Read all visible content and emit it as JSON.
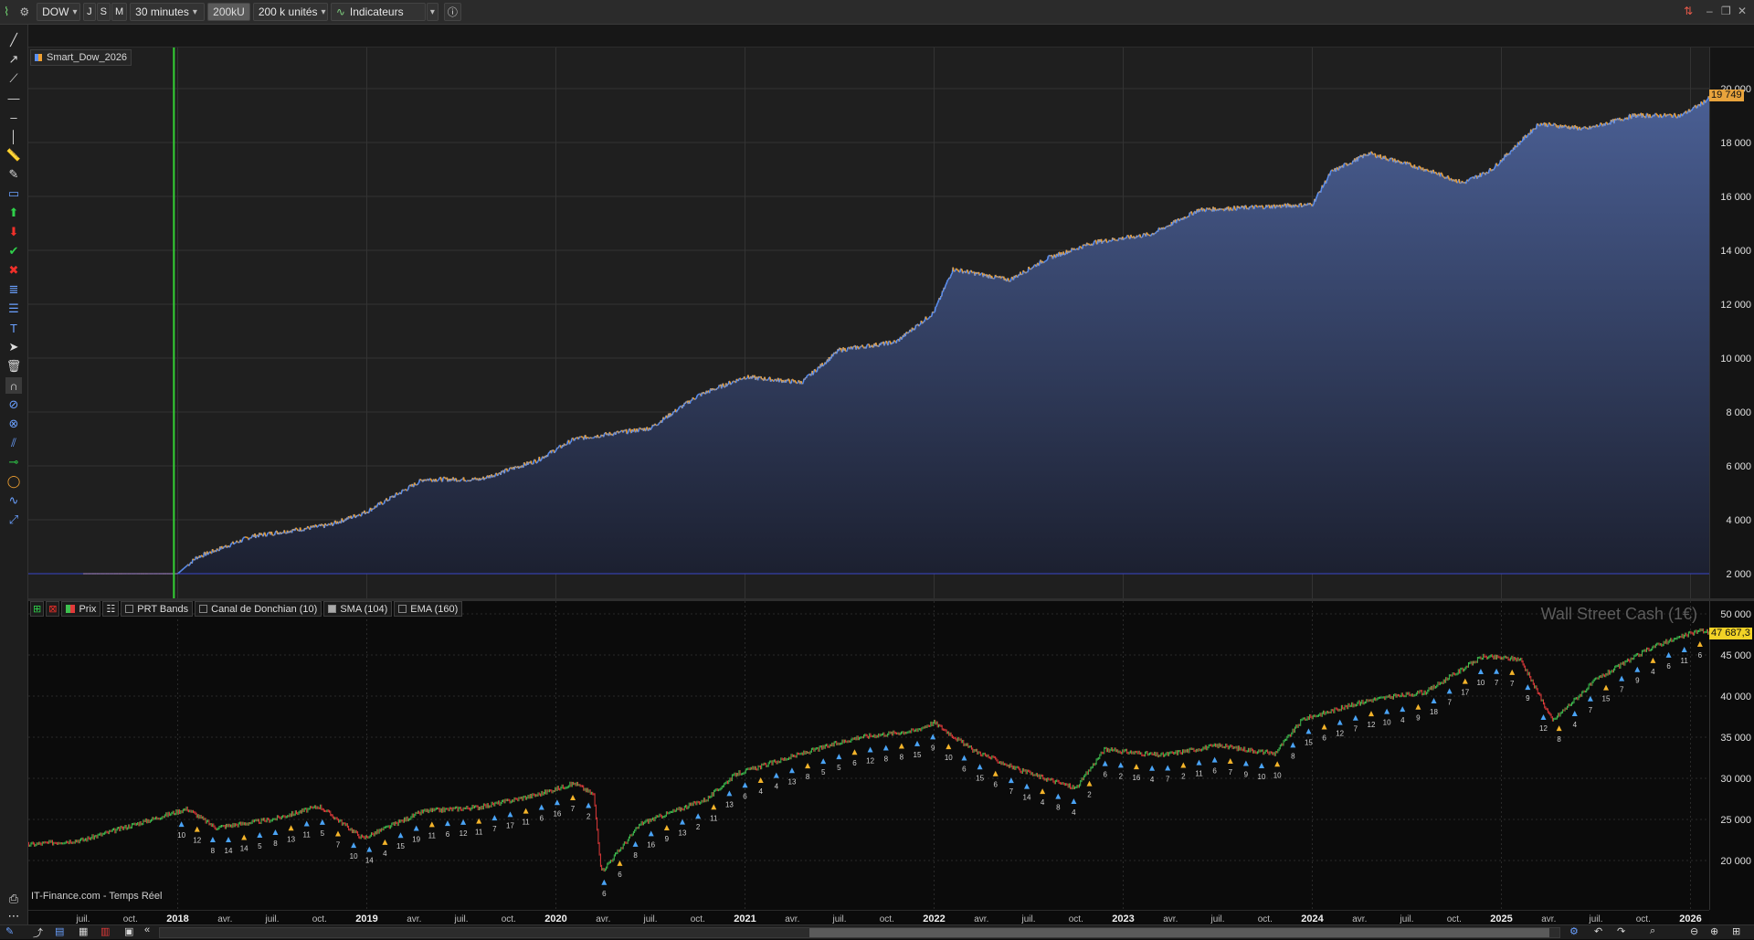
{
  "toolbar": {
    "instrument": "DOW",
    "period_buttons": [
      "J",
      "S",
      "M"
    ],
    "timeframe": "30 minutes",
    "units_short": "200kU",
    "units": "200 k unités",
    "indicators_label": "Indicateurs"
  },
  "equity_pane": {
    "legend_label": "Smart_Dow_2026",
    "y_ticks": [
      "20 000",
      "18 000",
      "16 000",
      "14 000",
      "12 000",
      "10 000",
      "8 000",
      "6 000",
      "4 000",
      "2 000"
    ],
    "last_value": "19 749",
    "colors": {
      "line_up": "#5b8ff0",
      "line_down": "#f0a030",
      "fill": "#3a4c78",
      "last_tag": "#e8a33c",
      "marker": "#34d134"
    }
  },
  "price_pane": {
    "legend": [
      {
        "label": "Prix",
        "checked": true
      },
      {
        "label": "PRT Bands",
        "checked": false
      },
      {
        "label": "Canal de Donchian (10)",
        "checked": false
      },
      {
        "label": "SMA (104)",
        "checked": true
      },
      {
        "label": "EMA (160)",
        "checked": false
      }
    ],
    "watermark": "Wall Street Cash (1€)",
    "y_ticks": [
      "50 000",
      "45 000",
      "40 000",
      "35 000",
      "30 000",
      "25 000",
      "20 000"
    ],
    "last_value": "47 687,3",
    "colors": {
      "last_tag": "#f2d226",
      "bull": "#3fbf4f",
      "bear": "#e23a3a",
      "arrow_up": "#4aa3f5",
      "arrow_down": "#f4b42a"
    },
    "trade_labels": [
      "10",
      "12",
      "8",
      "14",
      "14",
      "5",
      "8",
      "13",
      "11",
      "5",
      "7",
      "10",
      "14",
      "4",
      "15",
      "19",
      "11",
      "6",
      "12",
      "11",
      "7",
      "17",
      "11",
      "6",
      "16",
      "7",
      "2",
      "6",
      "6",
      "8",
      "16",
      "9",
      "13",
      "2",
      "11",
      "13",
      "6",
      "4",
      "4",
      "13",
      "8",
      "5",
      "5",
      "6",
      "12",
      "8",
      "8",
      "15",
      "9",
      "10",
      "6",
      "15",
      "6",
      "7",
      "14",
      "4",
      "8",
      "4",
      "2",
      "6",
      "2",
      "16",
      "4",
      "7",
      "2",
      "11",
      "6",
      "7",
      "9",
      "10",
      "10",
      "8",
      "15",
      "6",
      "12",
      "7",
      "12",
      "10",
      "4",
      "9",
      "18",
      "7",
      "17",
      "10",
      "7",
      "7",
      "9",
      "12",
      "8",
      "4",
      "7",
      "15",
      "7",
      "9",
      "4",
      "6",
      "11",
      "6"
    ]
  },
  "time_axis": {
    "labels": [
      "juil.",
      "oct.",
      "2018",
      "avr.",
      "juil.",
      "oct.",
      "2019",
      "avr.",
      "juil.",
      "oct.",
      "2020",
      "avr.",
      "juil.",
      "oct.",
      "2021",
      "avr.",
      "juil.",
      "oct.",
      "2022",
      "avr.",
      "juil.",
      "oct.",
      "2023",
      "avr.",
      "juil.",
      "oct.",
      "2024",
      "avr.",
      "juil.",
      "oct.",
      "2025",
      "avr.",
      "juil.",
      "oct.",
      "2026"
    ],
    "years": [
      "2018",
      "2019",
      "2020",
      "2021",
      "2022",
      "2023",
      "2024",
      "2025",
      "2026"
    ]
  },
  "status": {
    "feed": "IT-Finance.com - Temps Réel"
  },
  "bottom_nav": {
    "back": "«"
  }
}
